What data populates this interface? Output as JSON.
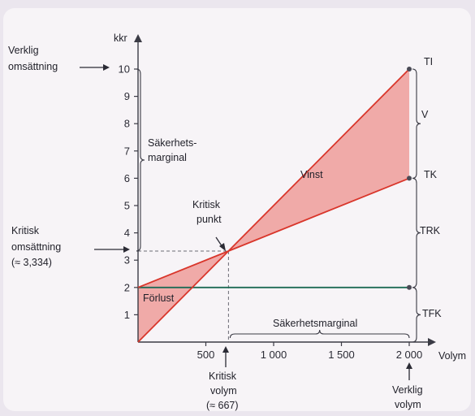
{
  "chart_data": {
    "type": "line",
    "xlabel": "Volym",
    "ylabel": "kkr",
    "xlim": [
      0,
      2100
    ],
    "ylim": [
      0,
      10.5
    ],
    "x_ticks": [
      "500",
      "1 000",
      "1 500",
      "2 000"
    ],
    "x_tick_values": [
      500,
      1000,
      1500,
      2000
    ],
    "y_ticks": [
      "1",
      "2",
      "3",
      "4",
      "5",
      "6",
      "7",
      "8",
      "9",
      "10"
    ],
    "y_tick_values": [
      1,
      2,
      3,
      4,
      5,
      6,
      7,
      8,
      9,
      10
    ],
    "series": [
      {
        "name": "TI",
        "x": [
          0,
          2000
        ],
        "y": [
          0,
          10
        ],
        "color": "#d9362b"
      },
      {
        "name": "TK",
        "x": [
          0,
          2000
        ],
        "y": [
          2,
          6
        ],
        "color": "#d9362b"
      },
      {
        "name": "TFK",
        "x": [
          0,
          2000
        ],
        "y": [
          2,
          2
        ],
        "color": "#1f6b56"
      }
    ],
    "regions": [
      {
        "label": "Vinst",
        "color": "#f0aaa8"
      },
      {
        "label": "Förlust",
        "color": "#f0aaa8"
      }
    ],
    "break_even": {
      "x": 667,
      "y": 3.334
    },
    "annotations": {
      "verklig_omsattning": [
        "Verklig",
        "omsättning"
      ],
      "kritisk_omsattning": [
        "Kritisk",
        "omsättning",
        "(≈ 3,334)"
      ],
      "sakerhetsmarginal_y": [
        "Säkerhets-",
        "marginal"
      ],
      "kritisk_punkt": [
        "Kritisk",
        "punkt"
      ],
      "sakerhetsmarginal_x": "Säkerhetsmarginal",
      "kritisk_volym": [
        "Kritisk",
        "volym",
        "(≈ 667)"
      ],
      "verklig_volym": [
        "Verklig",
        "volym"
      ],
      "right_labels": {
        "ti": "TI",
        "v": "V",
        "tk": "TK",
        "trk": "TRK",
        "tfk": "TFK"
      }
    }
  }
}
